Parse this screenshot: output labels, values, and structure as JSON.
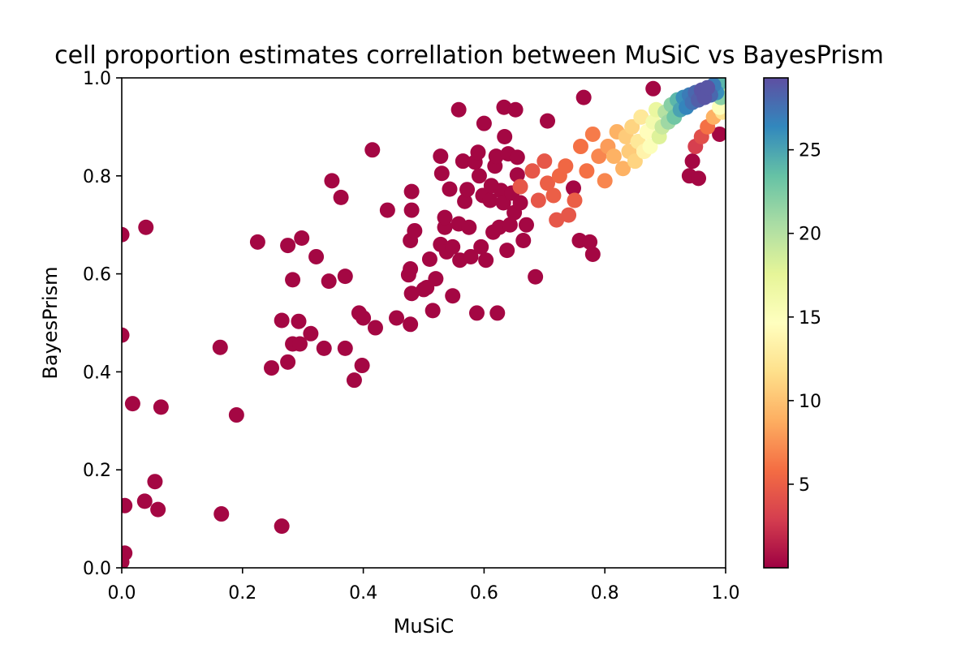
{
  "chart_data": {
    "type": "scatter",
    "title": "cell proportion estimates correllation between MuSiC vs BayesPrism",
    "xlabel": "MuSiC",
    "ylabel": "BayesPrism",
    "xlim": [
      0.0,
      1.0
    ],
    "ylim": [
      0.0,
      1.0
    ],
    "xticks": [
      "0.0",
      "0.2",
      "0.4",
      "0.6",
      "0.8",
      "1.0"
    ],
    "yticks": [
      "0.0",
      "0.2",
      "0.4",
      "0.6",
      "0.8",
      "1.0"
    ],
    "grid": false,
    "colorbar": {
      "colormap": "Spectral",
      "range": [
        0.0,
        29.3
      ],
      "ticks": [
        "5",
        "10",
        "15",
        "20",
        "25"
      ]
    },
    "points": [
      [
        0.0,
        0.68,
        0.3
      ],
      [
        0.04,
        0.695,
        0.3
      ],
      [
        0.0,
        0.475,
        0.3
      ],
      [
        0.018,
        0.335,
        0.3
      ],
      [
        0.065,
        0.328,
        0.3
      ],
      [
        0.005,
        0.127,
        0.3
      ],
      [
        0.038,
        0.136,
        0.3
      ],
      [
        0.055,
        0.176,
        0.3
      ],
      [
        0.06,
        0.119,
        0.3
      ],
      [
        0.005,
        0.03,
        0.3
      ],
      [
        0.0,
        0.012,
        0.3
      ],
      [
        0.165,
        0.11,
        0.3
      ],
      [
        0.265,
        0.085,
        0.3
      ],
      [
        0.19,
        0.312,
        0.3
      ],
      [
        0.163,
        0.45,
        0.3
      ],
      [
        0.248,
        0.408,
        0.3
      ],
      [
        0.275,
        0.42,
        0.3
      ],
      [
        0.265,
        0.505,
        0.3
      ],
      [
        0.283,
        0.457,
        0.3
      ],
      [
        0.295,
        0.457,
        0.3
      ],
      [
        0.293,
        0.503,
        0.3
      ],
      [
        0.313,
        0.478,
        0.3
      ],
      [
        0.335,
        0.448,
        0.3
      ],
      [
        0.283,
        0.588,
        0.3
      ],
      [
        0.343,
        0.585,
        0.3
      ],
      [
        0.37,
        0.448,
        0.3
      ],
      [
        0.385,
        0.383,
        0.3
      ],
      [
        0.398,
        0.413,
        0.3
      ],
      [
        0.393,
        0.52,
        0.3
      ],
      [
        0.4,
        0.51,
        0.3
      ],
      [
        0.42,
        0.49,
        0.3
      ],
      [
        0.37,
        0.595,
        0.3
      ],
      [
        0.225,
        0.665,
        0.3
      ],
      [
        0.275,
        0.658,
        0.3
      ],
      [
        0.298,
        0.673,
        0.3
      ],
      [
        0.322,
        0.635,
        0.3
      ],
      [
        0.348,
        0.79,
        0.3
      ],
      [
        0.363,
        0.756,
        0.3
      ],
      [
        0.415,
        0.853,
        0.3
      ],
      [
        0.44,
        0.73,
        0.3
      ],
      [
        0.455,
        0.51,
        0.3
      ],
      [
        0.478,
        0.497,
        0.3
      ],
      [
        0.48,
        0.56,
        0.3
      ],
      [
        0.475,
        0.598,
        0.3
      ],
      [
        0.478,
        0.61,
        0.3
      ],
      [
        0.478,
        0.668,
        0.3
      ],
      [
        0.485,
        0.688,
        0.3
      ],
      [
        0.48,
        0.73,
        0.3
      ],
      [
        0.48,
        0.768,
        0.3
      ],
      [
        0.5,
        0.568,
        0.3
      ],
      [
        0.505,
        0.572,
        0.3
      ],
      [
        0.515,
        0.525,
        0.3
      ],
      [
        0.51,
        0.63,
        0.3
      ],
      [
        0.52,
        0.59,
        0.3
      ],
      [
        0.528,
        0.66,
        0.3
      ],
      [
        0.535,
        0.695,
        0.3
      ],
      [
        0.535,
        0.715,
        0.3
      ],
      [
        0.538,
        0.645,
        0.3
      ],
      [
        0.543,
        0.773,
        0.3
      ],
      [
        0.548,
        0.555,
        0.3
      ],
      [
        0.548,
        0.655,
        0.3
      ],
      [
        0.558,
        0.702,
        0.3
      ],
      [
        0.56,
        0.628,
        0.3
      ],
      [
        0.565,
        0.83,
        0.3
      ],
      [
        0.558,
        0.935,
        0.3
      ],
      [
        0.528,
        0.84,
        0.3
      ],
      [
        0.53,
        0.805,
        0.3
      ],
      [
        0.568,
        0.748,
        0.3
      ],
      [
        0.572,
        0.772,
        0.3
      ],
      [
        0.575,
        0.695,
        0.3
      ],
      [
        0.578,
        0.635,
        0.3
      ],
      [
        0.585,
        0.828,
        0.3
      ],
      [
        0.59,
        0.848,
        0.3
      ],
      [
        0.588,
        0.52,
        0.3
      ],
      [
        0.592,
        0.8,
        0.3
      ],
      [
        0.595,
        0.655,
        0.3
      ],
      [
        0.598,
        0.76,
        0.3
      ],
      [
        0.6,
        0.907,
        0.3
      ],
      [
        0.603,
        0.628,
        0.3
      ],
      [
        0.61,
        0.75,
        0.3
      ],
      [
        0.612,
        0.78,
        0.3
      ],
      [
        0.615,
        0.685,
        0.3
      ],
      [
        0.618,
        0.82,
        0.3
      ],
      [
        0.62,
        0.84,
        0.3
      ],
      [
        0.622,
        0.52,
        0.3
      ],
      [
        0.625,
        0.695,
        0.3
      ],
      [
        0.628,
        0.77,
        0.3
      ],
      [
        0.632,
        0.745,
        0.3
      ],
      [
        0.634,
        0.88,
        0.3
      ],
      [
        0.633,
        0.94,
        0.3
      ],
      [
        0.638,
        0.648,
        0.3
      ],
      [
        0.64,
        0.845,
        0.3
      ],
      [
        0.643,
        0.7,
        0.3
      ],
      [
        0.646,
        0.765,
        0.3
      ],
      [
        0.652,
        0.935,
        0.3
      ],
      [
        0.65,
        0.725,
        0.3
      ],
      [
        0.655,
        0.802,
        0.3
      ],
      [
        0.655,
        0.838,
        0.3
      ],
      [
        0.66,
        0.745,
        0.3
      ],
      [
        0.665,
        0.668,
        0.3
      ],
      [
        0.67,
        0.7,
        0.3
      ],
      [
        0.685,
        0.594,
        0.3
      ],
      [
        0.705,
        0.912,
        0.3
      ],
      [
        0.748,
        0.775,
        0.3
      ],
      [
        0.765,
        0.96,
        0.3
      ],
      [
        0.758,
        0.668,
        0.3
      ],
      [
        0.775,
        0.665,
        0.3
      ],
      [
        0.78,
        0.64,
        0.3
      ],
      [
        0.88,
        0.978,
        0.3
      ],
      [
        0.94,
        0.8,
        0.3
      ],
      [
        0.955,
        0.795,
        0.3
      ],
      [
        0.945,
        0.83,
        0.3
      ],
      [
        0.99,
        0.885,
        0.3
      ],
      [
        0.66,
        0.778,
        4.5
      ],
      [
        0.68,
        0.81,
        4.5
      ],
      [
        0.69,
        0.75,
        4.5
      ],
      [
        0.7,
        0.83,
        4.5
      ],
      [
        0.705,
        0.785,
        5
      ],
      [
        0.715,
        0.76,
        5
      ],
      [
        0.725,
        0.8,
        5.5
      ],
      [
        0.735,
        0.82,
        5.5
      ],
      [
        0.72,
        0.71,
        4.5
      ],
      [
        0.74,
        0.72,
        4.5
      ],
      [
        0.75,
        0.75,
        5
      ],
      [
        0.76,
        0.86,
        6
      ],
      [
        0.77,
        0.81,
        6
      ],
      [
        0.78,
        0.885,
        6.5
      ],
      [
        0.79,
        0.84,
        7
      ],
      [
        0.8,
        0.79,
        7
      ],
      [
        0.805,
        0.86,
        8
      ],
      [
        0.815,
        0.84,
        9
      ],
      [
        0.82,
        0.89,
        9
      ],
      [
        0.83,
        0.815,
        9
      ],
      [
        0.84,
        0.85,
        10.5
      ],
      [
        0.835,
        0.88,
        10.5
      ],
      [
        0.845,
        0.9,
        11
      ],
      [
        0.85,
        0.83,
        11
      ],
      [
        0.855,
        0.87,
        12.5
      ],
      [
        0.86,
        0.92,
        12.5
      ],
      [
        0.865,
        0.85,
        13.5
      ],
      [
        0.87,
        0.89,
        14.5
      ],
      [
        0.875,
        0.86,
        15
      ],
      [
        0.88,
        0.91,
        16
      ],
      [
        0.885,
        0.935,
        17
      ],
      [
        0.89,
        0.88,
        18
      ],
      [
        0.895,
        0.9,
        19
      ],
      [
        0.9,
        0.93,
        20
      ],
      [
        0.905,
        0.91,
        21
      ],
      [
        0.91,
        0.945,
        22
      ],
      [
        0.915,
        0.92,
        23
      ],
      [
        0.92,
        0.955,
        24
      ],
      [
        0.925,
        0.935,
        25
      ],
      [
        0.93,
        0.96,
        26
      ],
      [
        0.935,
        0.94,
        26.5
      ],
      [
        0.94,
        0.965,
        27
      ],
      [
        0.945,
        0.95,
        27.5
      ],
      [
        0.95,
        0.97,
        28
      ],
      [
        0.955,
        0.955,
        28.5
      ],
      [
        0.96,
        0.975,
        29
      ],
      [
        0.965,
        0.96,
        29
      ],
      [
        0.97,
        0.98,
        29
      ],
      [
        0.975,
        0.965,
        28
      ],
      [
        0.98,
        0.985,
        27
      ],
      [
        0.985,
        0.97,
        26
      ],
      [
        0.99,
        0.99,
        24
      ],
      [
        0.992,
        0.96,
        22
      ],
      [
        0.995,
        0.975,
        20
      ],
      [
        0.99,
        0.94,
        15
      ],
      [
        0.995,
        0.93,
        12
      ],
      [
        0.98,
        0.92,
        9
      ],
      [
        0.97,
        0.9,
        6
      ],
      [
        0.96,
        0.88,
        4
      ],
      [
        0.95,
        0.86,
        3
      ]
    ]
  }
}
